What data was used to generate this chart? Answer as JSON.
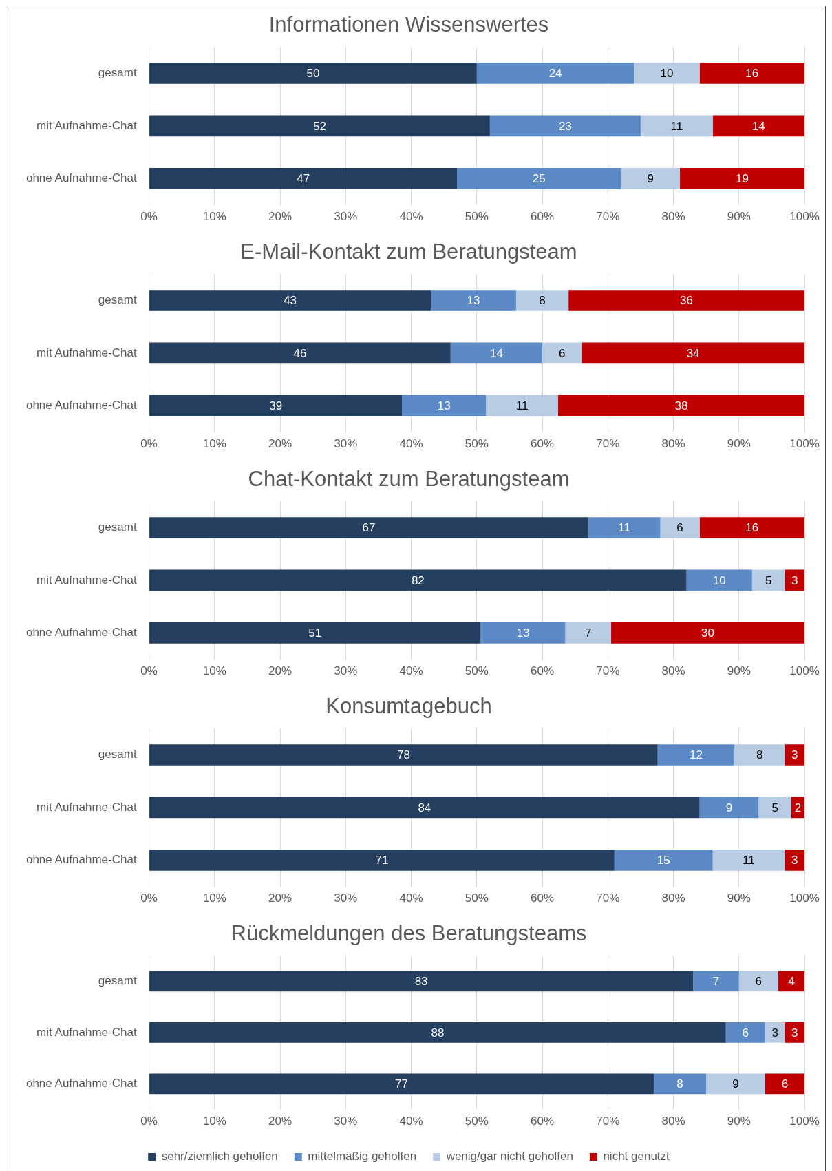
{
  "chart_data": [
    {
      "type": "bar",
      "title": "Informationen Wissenswertes",
      "orientation": "horizontal",
      "stacked": true,
      "categories": [
        "gesamt",
        "mit Aufnahme-Chat",
        "ohne Aufnahme-Chat"
      ],
      "xlim": [
        0,
        100
      ],
      "xticks": [
        {
          "value": 0,
          "label": "0%"
        },
        {
          "value": 10,
          "label": "10%"
        },
        {
          "value": 20,
          "label": "20%"
        },
        {
          "value": 30,
          "label": "30%"
        },
        {
          "value": 40,
          "label": "40%"
        },
        {
          "value": 50,
          "label": "50%"
        },
        {
          "value": 60,
          "label": "60%"
        },
        {
          "value": 70,
          "label": "70%"
        },
        {
          "value": 80,
          "label": "80%"
        },
        {
          "value": 90,
          "label": "90%"
        },
        {
          "value": 100,
          "label": "100%"
        }
      ],
      "grid": "x",
      "data_labels": true,
      "series": [
        {
          "color": "#243f60",
          "values": [
            50,
            52,
            47
          ]
        },
        {
          "color": "#5b8ac6",
          "values": [
            24,
            23,
            25
          ]
        },
        {
          "color": "#b8cce4",
          "values": [
            10,
            11,
            9
          ]
        },
        {
          "color": "#c00000",
          "values": [
            16,
            14,
            19
          ]
        }
      ]
    },
    {
      "type": "bar",
      "title": "E-Mail-Kontakt zum Beratungsteam",
      "orientation": "horizontal",
      "stacked": true,
      "categories": [
        "gesamt",
        "mit Aufnahme-Chat",
        "ohne Aufnahme-Chat"
      ],
      "xlim": [
        0,
        100
      ],
      "xticks": [
        {
          "value": 0,
          "label": "0%"
        },
        {
          "value": 10,
          "label": "10%"
        },
        {
          "value": 20,
          "label": "20%"
        },
        {
          "value": 30,
          "label": "30%"
        },
        {
          "value": 40,
          "label": "40%"
        },
        {
          "value": 50,
          "label": "50%"
        },
        {
          "value": 60,
          "label": "60%"
        },
        {
          "value": 70,
          "label": "70%"
        },
        {
          "value": 80,
          "label": "80%"
        },
        {
          "value": 90,
          "label": "90%"
        },
        {
          "value": 100,
          "label": "100%"
        }
      ],
      "grid": "x",
      "series": [
        {
          "color": "#243f60",
          "values": [
            43,
            46,
            38.6
          ],
          "value_labels": [
            "43",
            "46",
            "39"
          ]
        },
        {
          "color": "#5b8ac6",
          "values": [
            13,
            14,
            12.8
          ],
          "value_labels": [
            "13",
            "14",
            "13"
          ]
        },
        {
          "color": "#b8cce4",
          "values": [
            8,
            6,
            11
          ],
          "value_labels": [
            "8",
            "6",
            "11"
          ]
        },
        {
          "color": "#c00000",
          "values": [
            36,
            34,
            37.6
          ],
          "value_labels": [
            "36",
            "34",
            "38"
          ]
        }
      ]
    },
    {
      "type": "bar",
      "title": "Chat-Kontakt zum Beratungsteam",
      "orientation": "horizontal",
      "stacked": true,
      "categories": [
        "gesamt",
        "mit Aufnahme-Chat",
        "ohne Aufnahme-Chat"
      ],
      "xlim": [
        0,
        100
      ],
      "xticks": [
        {
          "value": 0,
          "label": "0%"
        },
        {
          "value": 10,
          "label": "10%"
        },
        {
          "value": 20,
          "label": "20%"
        },
        {
          "value": 30,
          "label": "30%"
        },
        {
          "value": 40,
          "label": "40%"
        },
        {
          "value": 50,
          "label": "50%"
        },
        {
          "value": 60,
          "label": "60%"
        },
        {
          "value": 70,
          "label": "70%"
        },
        {
          "value": 80,
          "label": "80%"
        },
        {
          "value": 90,
          "label": "90%"
        },
        {
          "value": 100,
          "label": "100%"
        }
      ],
      "grid": "x",
      "series": [
        {
          "color": "#243f60",
          "values": [
            67,
            82,
            50.6
          ],
          "value_labels": [
            "67",
            "82",
            "51"
          ]
        },
        {
          "color": "#5b8ac6",
          "values": [
            11,
            10,
            12.9
          ],
          "value_labels": [
            "11",
            "10",
            "13"
          ]
        },
        {
          "color": "#b8cce4",
          "values": [
            6,
            5,
            7
          ],
          "value_labels": [
            "6",
            "5",
            "7"
          ]
        },
        {
          "color": "#c00000",
          "values": [
            16,
            3,
            29.5
          ],
          "value_labels": [
            "16",
            "3",
            "30"
          ]
        }
      ]
    },
    {
      "type": "bar",
      "title": "Konsumtagebuch",
      "orientation": "horizontal",
      "stacked": true,
      "categories": [
        "gesamt",
        "mit Aufnahme-Chat",
        "ohne Aufnahme-Chat"
      ],
      "xlim": [
        0,
        100
      ],
      "xticks": [
        {
          "value": 0,
          "label": "0%"
        },
        {
          "value": 10,
          "label": "10%"
        },
        {
          "value": 20,
          "label": "20%"
        },
        {
          "value": 30,
          "label": "30%"
        },
        {
          "value": 40,
          "label": "40%"
        },
        {
          "value": 50,
          "label": "50%"
        },
        {
          "value": 60,
          "label": "60%"
        },
        {
          "value": 70,
          "label": "70%"
        },
        {
          "value": 80,
          "label": "80%"
        },
        {
          "value": 90,
          "label": "90%"
        },
        {
          "value": 100,
          "label": "100%"
        }
      ],
      "grid": "x",
      "series": [
        {
          "color": "#243f60",
          "values": [
            77.6,
            84,
            71
          ],
          "value_labels": [
            "78",
            "84",
            "71"
          ]
        },
        {
          "color": "#5b8ac6",
          "values": [
            11.7,
            9,
            15
          ],
          "value_labels": [
            "12",
            "9",
            "15"
          ]
        },
        {
          "color": "#b8cce4",
          "values": [
            7.7,
            5,
            11
          ],
          "value_labels": [
            "8",
            "5",
            "11"
          ]
        },
        {
          "color": "#c00000",
          "values": [
            3,
            2,
            3
          ],
          "value_labels": [
            "3",
            "2",
            "3"
          ]
        }
      ]
    },
    {
      "type": "bar",
      "title": "Rückmeldungen des Beratungsteams",
      "orientation": "horizontal",
      "stacked": true,
      "categories": [
        "gesamt",
        "mit Aufnahme-Chat",
        "ohne Aufnahme-Chat"
      ],
      "xlim": [
        0,
        100
      ],
      "xticks": [
        {
          "value": 0,
          "label": "0%"
        },
        {
          "value": 10,
          "label": "10%"
        },
        {
          "value": 20,
          "label": "20%"
        },
        {
          "value": 30,
          "label": "30%"
        },
        {
          "value": 40,
          "label": "40%"
        },
        {
          "value": 50,
          "label": "50%"
        },
        {
          "value": 60,
          "label": "60%"
        },
        {
          "value": 70,
          "label": "70%"
        },
        {
          "value": 80,
          "label": "80%"
        },
        {
          "value": 90,
          "label": "90%"
        },
        {
          "value": 100,
          "label": "100%"
        }
      ],
      "grid": "x",
      "data_labels": true,
      "legend": "bottom",
      "series": [
        {
          "name": "sehr/ziemlich geholfen",
          "color": "#243f60",
          "values": [
            83,
            88,
            77
          ]
        },
        {
          "name": "mittelmäßig geholfen",
          "color": "#5b8ac6",
          "values": [
            7,
            6,
            8
          ]
        },
        {
          "name": "wenig/gar nicht geholfen",
          "color": "#b8cce4",
          "values": [
            6,
            3,
            9
          ]
        },
        {
          "name": "nicht genutzt",
          "color": "#c00000",
          "values": [
            4,
            3,
            6
          ]
        }
      ]
    }
  ]
}
